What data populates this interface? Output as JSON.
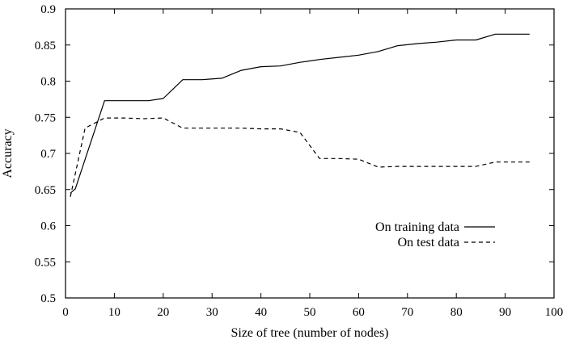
{
  "chart_data": {
    "type": "line",
    "xlabel": "Size of tree (number of nodes)",
    "ylabel": "Accuracy",
    "xlim": [
      0,
      100
    ],
    "ylim": [
      0.5,
      0.9
    ],
    "x_ticks": [
      "0",
      "10",
      "20",
      "30",
      "40",
      "50",
      "60",
      "70",
      "80",
      "90",
      "100"
    ],
    "y_ticks": [
      "0.5",
      "0.55",
      "0.6",
      "0.65",
      "0.7",
      "0.75",
      "0.8",
      "0.85",
      "0.9"
    ],
    "grid": false,
    "legend_position": "right, below middle",
    "series": [
      {
        "name": "On training data",
        "style": "solid",
        "color": "#000000",
        "x": [
          1,
          2,
          8,
          17,
          20,
          24,
          28,
          32,
          36,
          40,
          44,
          48,
          52,
          56,
          60,
          64,
          68,
          72,
          76,
          80,
          84,
          88,
          92,
          95
        ],
        "y": [
          0.645,
          0.651,
          0.773,
          0.773,
          0.776,
          0.802,
          0.802,
          0.804,
          0.815,
          0.82,
          0.821,
          0.826,
          0.83,
          0.833,
          0.836,
          0.841,
          0.849,
          0.852,
          0.854,
          0.857,
          0.857,
          0.865,
          0.865,
          0.865
        ]
      },
      {
        "name": "On test data",
        "style": "dashed",
        "color": "#000000",
        "x": [
          1,
          4,
          8,
          12,
          16,
          20,
          24,
          28,
          32,
          36,
          40,
          44,
          48,
          52,
          56,
          60,
          64,
          68,
          72,
          76,
          80,
          84,
          88,
          92,
          95
        ],
        "y": [
          0.64,
          0.735,
          0.749,
          0.749,
          0.748,
          0.749,
          0.735,
          0.735,
          0.735,
          0.735,
          0.734,
          0.734,
          0.729,
          0.693,
          0.693,
          0.692,
          0.681,
          0.682,
          0.682,
          0.682,
          0.682,
          0.682,
          0.688,
          0.688,
          0.688
        ]
      }
    ]
  }
}
